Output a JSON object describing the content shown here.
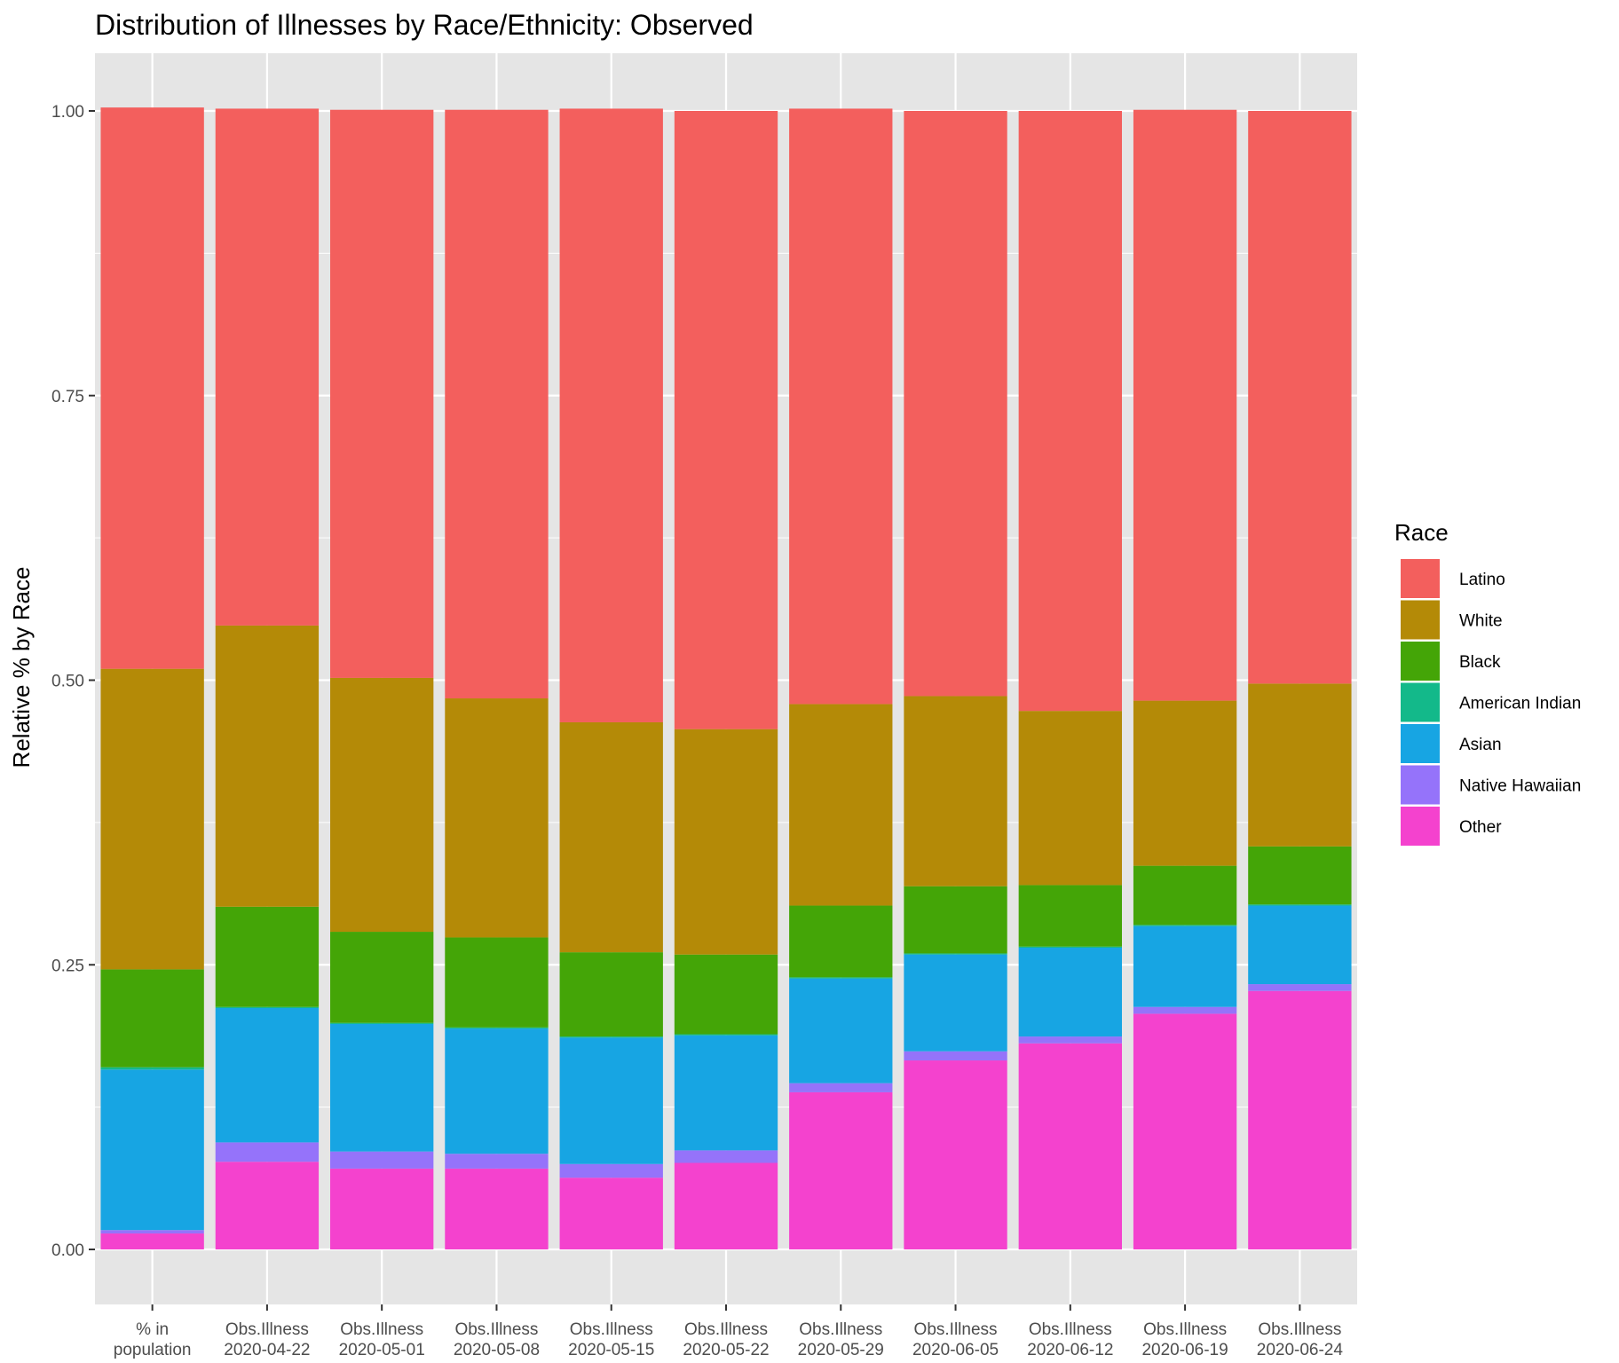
{
  "chart_data": {
    "type": "bar",
    "stacked": true,
    "title": "Distribution of Illnesses by Race/Ethnicity: Observed",
    "xlabel": "",
    "ylabel": "Relative % by Race",
    "ylim": [
      -0.05,
      1.05
    ],
    "yticks": [
      "0.00",
      "0.25",
      "0.50",
      "0.75",
      "1.00"
    ],
    "grid": true,
    "legend_position": "right",
    "legend_title": "Race",
    "categories": [
      [
        "% in",
        "population"
      ],
      [
        "Obs.Illness",
        "2020-04-22"
      ],
      [
        "Obs.Illness",
        "2020-05-01"
      ],
      [
        "Obs.Illness",
        "2020-05-08"
      ],
      [
        "Obs.Illness",
        "2020-05-15"
      ],
      [
        "Obs.Illness",
        "2020-05-22"
      ],
      [
        "Obs.Illness",
        "2020-05-29"
      ],
      [
        "Obs.Illness",
        "2020-06-05"
      ],
      [
        "Obs.Illness",
        "2020-06-12"
      ],
      [
        "Obs.Illness",
        "2020-06-19"
      ],
      [
        "Obs.Illness",
        "2020-06-24"
      ]
    ],
    "series": [
      {
        "name": "Latino",
        "color": "#F8766D",
        "values": [
          0.493,
          0.454,
          0.499,
          0.517,
          0.539,
          0.543,
          0.523,
          0.514,
          0.527,
          0.519,
          0.503
        ]
      },
      {
        "name": "White",
        "color": "#B79F00",
        "values": [
          0.264,
          0.247,
          0.223,
          0.21,
          0.202,
          0.198,
          0.177,
          0.167,
          0.153,
          0.145,
          0.143
        ]
      },
      {
        "name": "Black",
        "color": "#00BA38",
        "values": [
          0.086,
          0.088,
          0.08,
          0.079,
          0.074,
          0.07,
          0.063,
          0.059,
          0.054,
          0.052,
          0.051
        ]
      },
      {
        "name": "American Indian",
        "color": "#00BFC4",
        "values": [
          0.002,
          0.001,
          0.001,
          0.001,
          0.001,
          0.001,
          0.001,
          0.001,
          0.001,
          0.001,
          0.001
        ]
      },
      {
        "name": "Asian",
        "color": "#00A9FF",
        "values": [
          0.141,
          0.118,
          0.112,
          0.11,
          0.111,
          0.101,
          0.092,
          0.085,
          0.078,
          0.071,
          0.069
        ]
      },
      {
        "name": "Native Hawaiian",
        "color": "#9590FF",
        "values": [
          0.003,
          0.017,
          0.015,
          0.013,
          0.012,
          0.011,
          0.008,
          0.008,
          0.006,
          0.006,
          0.006
        ]
      },
      {
        "name": "Other",
        "color": "#FF47D2",
        "values": [
          0.014,
          0.077,
          0.071,
          0.071,
          0.063,
          0.076,
          0.138,
          0.166,
          0.181,
          0.207,
          0.227
        ]
      }
    ],
    "display_colors": {
      "Latino": "#F35F5D",
      "White": "#B48A07",
      "Black": "#44A507",
      "American Indian": "#13B98A",
      "Asian": "#17A5E3",
      "Native Hawaiian": "#9573FA",
      "Other": "#F442CE"
    },
    "panel_background": "#E5E5E5",
    "gridline_color": "#FFFFFF"
  }
}
